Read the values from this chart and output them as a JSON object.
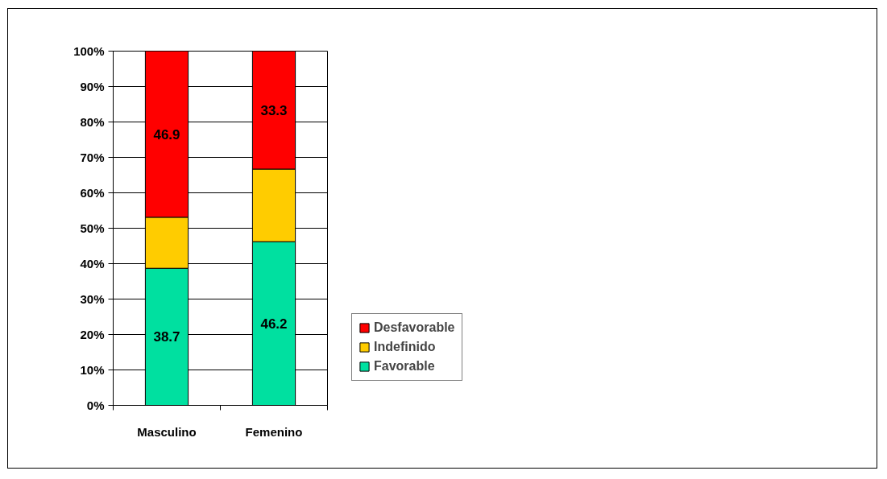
{
  "chart_data": {
    "type": "bar",
    "stacked": true,
    "categories": [
      "Masculino",
      "Femenino"
    ],
    "series": [
      {
        "name": "Favorable",
        "color": "#00e0a0",
        "values": [
          38.7,
          46.2
        ],
        "value_labels": [
          "38.7",
          "46.2"
        ]
      },
      {
        "name": "Indefinido",
        "color": "#ffcc00",
        "values": [
          14.4,
          20.5
        ],
        "value_labels": [
          null,
          null
        ]
      },
      {
        "name": "Desfavorable",
        "color": "#ff0000",
        "values": [
          46.9,
          33.3
        ],
        "value_labels": [
          "46.9",
          "33.3"
        ]
      }
    ],
    "ylim": [
      0,
      100
    ],
    "yticks": [
      {
        "value": 0,
        "label": "0%"
      },
      {
        "value": 10,
        "label": "10%"
      },
      {
        "value": 20,
        "label": "20%"
      },
      {
        "value": 30,
        "label": "30%"
      },
      {
        "value": 40,
        "label": "40%"
      },
      {
        "value": 50,
        "label": "50%"
      },
      {
        "value": 60,
        "label": "60%"
      },
      {
        "value": 70,
        "label": "70%"
      },
      {
        "value": 80,
        "label": "80%"
      },
      {
        "value": 90,
        "label": "90%"
      },
      {
        "value": 100,
        "label": "100%"
      }
    ],
    "grid": "y",
    "legend": "right"
  }
}
